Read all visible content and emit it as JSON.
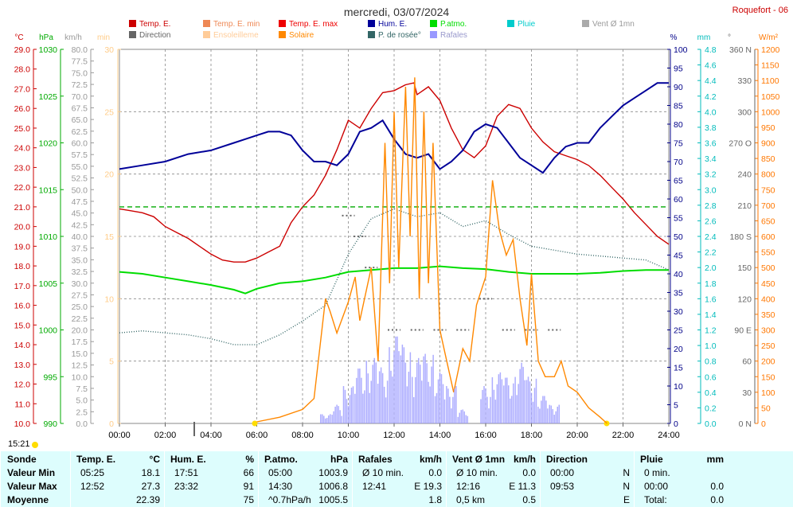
{
  "header": {
    "title": "mercredi, 03/07/2024",
    "station": "Roquefort - 06"
  },
  "legend": [
    {
      "label": "Temp. E.",
      "color": "#cc0000"
    },
    {
      "label": "Temp. E. min",
      "color": "#ee8855"
    },
    {
      "label": "Temp. E. max",
      "color": "#ee0000"
    },
    {
      "label": "Hum. E.",
      "color": "#000099"
    },
    {
      "label": "P.atmo.",
      "color": "#00dd00"
    },
    {
      "label": "Pluie",
      "color": "#00cccc"
    },
    {
      "label": "Vent Ø 1mn",
      "color": "#aaaaaa"
    },
    {
      "label": "Direction",
      "color": "#666666"
    },
    {
      "label": "Ensoleilleme",
      "color": "#ffcc99"
    },
    {
      "label": "Solaire",
      "color": "#ff8800"
    },
    {
      "label": "P. de rosée°",
      "color": "#336666"
    },
    {
      "label": "Rafales",
      "color": "#9999ff"
    }
  ],
  "axes": {
    "temp": {
      "unit": "°C",
      "min": 10,
      "max": 29,
      "step": 1,
      "color": "#cc0000"
    },
    "pressure": {
      "unit": "hPa",
      "min": 990,
      "max": 1030,
      "step": 5,
      "color": "#00aa00"
    },
    "wind": {
      "unit": "km/h",
      "min": 0,
      "max": 80,
      "step": 2.5,
      "color": "#999999"
    },
    "sun": {
      "unit": "min",
      "min": 0,
      "max": 30,
      "step": 5,
      "color": "#ffcc88"
    },
    "humidity": {
      "unit": "%",
      "min": 0,
      "max": 100,
      "step": 5,
      "color": "#000088"
    },
    "rain": {
      "unit": "mm",
      "min": 0,
      "max": 4.8,
      "step": 0.2,
      "color": "#00bbbb"
    },
    "direction": {
      "unit": "°",
      "ticks": [
        "0 N",
        "30",
        "60",
        "90 E",
        "120",
        "150",
        "180 S",
        "210",
        "240",
        "270 O",
        "300",
        "330",
        "360 N"
      ],
      "color": "#666666"
    },
    "solar": {
      "unit": "W/m²",
      "min": 0,
      "max": 1200,
      "step": 50,
      "color": "#ff7700"
    },
    "x_ticks": [
      "00:00",
      "02:00",
      "04:00",
      "06:00",
      "08:00",
      "10:00",
      "12:00",
      "14:00",
      "16:00",
      "18:00",
      "20:00",
      "22:00",
      "24:00"
    ]
  },
  "markers": {
    "sunrise": "03:16",
    "sunrise2": "05:55",
    "sunset": "21:16",
    "moonset": "4:19",
    "left_time": "15:21"
  },
  "chart_data": {
    "type": "line",
    "x_unit": "hours",
    "series": [
      {
        "name": "Temp. E.",
        "axis": "temp",
        "color": "#cc0000",
        "x": [
          0,
          0.5,
          1,
          1.5,
          2,
          2.5,
          3,
          3.5,
          4,
          4.5,
          5,
          5.5,
          6,
          6.5,
          7,
          7.5,
          8,
          8.5,
          9,
          9.5,
          10,
          10.5,
          11,
          11.5,
          12,
          12.5,
          12.87,
          13,
          13.5,
          14,
          14.5,
          15,
          15.5,
          16,
          16.5,
          17,
          17.5,
          18,
          18.5,
          19,
          19.5,
          20,
          20.5,
          21,
          21.5,
          22,
          22.5,
          23,
          23.5,
          24
        ],
        "y": [
          20.9,
          20.8,
          20.7,
          20.5,
          20.0,
          19.7,
          19.4,
          19.0,
          18.6,
          18.3,
          18.2,
          18.2,
          18.4,
          18.7,
          19.0,
          20.2,
          21.0,
          21.6,
          22.6,
          23.9,
          25.4,
          25.0,
          26.0,
          26.8,
          26.9,
          27.2,
          27.3,
          26.7,
          27.1,
          26.4,
          25.0,
          23.9,
          23.5,
          24.1,
          25.6,
          26.2,
          26.0,
          25.0,
          24.3,
          23.8,
          23.6,
          23.4,
          23.1,
          22.6,
          22.0,
          21.4,
          20.7,
          20.1,
          19.5,
          19.1
        ]
      },
      {
        "name": "Hum. E.",
        "axis": "humidity",
        "color": "#000099",
        "x": [
          0,
          1,
          2,
          3,
          4,
          5,
          5.5,
          6,
          6.5,
          7,
          7.5,
          8,
          8.5,
          9,
          9.5,
          10,
          10.5,
          11,
          11.5,
          12,
          12.5,
          13,
          13.5,
          14,
          14.5,
          15,
          15.5,
          16,
          16.5,
          17,
          17.5,
          18,
          18.5,
          19,
          19.5,
          20,
          20.5,
          21,
          21.5,
          22,
          22.5,
          23,
          23.5,
          24
        ],
        "y": [
          68,
          69,
          70,
          72,
          73,
          75,
          76,
          77,
          78,
          78,
          77,
          73,
          70,
          70,
          69,
          72,
          78,
          79,
          81,
          76,
          72,
          71,
          72,
          68,
          70,
          73,
          78,
          80,
          79,
          75,
          71,
          69,
          67,
          71,
          74,
          75,
          75,
          79,
          82,
          85,
          87,
          89,
          91,
          91
        ]
      },
      {
        "name": "P.atmo.",
        "axis": "pressure",
        "color": "#00dd00",
        "x": [
          0,
          1,
          2,
          3,
          4,
          5,
          5.5,
          6,
          7,
          8,
          9,
          10,
          11,
          12,
          13,
          14,
          15,
          16,
          17,
          18,
          19,
          20,
          21,
          22,
          23,
          24
        ],
        "y": [
          1006.2,
          1006.0,
          1005.6,
          1005.2,
          1004.8,
          1004.3,
          1003.9,
          1004.4,
          1005.0,
          1005.2,
          1005.6,
          1006.2,
          1006.4,
          1006.6,
          1006.6,
          1006.8,
          1006.6,
          1006.5,
          1006.2,
          1006.0,
          1006.0,
          1006.0,
          1006.1,
          1006.3,
          1006.4,
          1006.4
        ]
      },
      {
        "name": "Temp. E. max",
        "axis": "temp",
        "color": "#00aa00",
        "style": "dashed",
        "x": [
          0,
          24
        ],
        "y": [
          21.0,
          21.0
        ]
      },
      {
        "name": "P. de rosée°",
        "axis": "temp",
        "color": "#336666",
        "style": "dotted",
        "x": [
          0,
          1,
          2,
          3,
          4,
          5,
          6,
          7,
          8,
          9,
          10,
          11,
          12,
          13,
          14,
          15,
          16,
          17,
          18,
          19,
          20,
          21,
          22,
          23,
          24
        ],
        "y": [
          14.6,
          14.7,
          14.6,
          14.5,
          14.3,
          14.0,
          14.0,
          14.5,
          15.2,
          16.0,
          18.6,
          20.4,
          20.9,
          20.5,
          20.7,
          20.0,
          20.3,
          19.6,
          19.0,
          18.8,
          18.6,
          18.5,
          18.4,
          18.3,
          17.8
        ]
      },
      {
        "name": "Solaire",
        "axis": "solar",
        "color": "#ff8800",
        "x": [
          6,
          7,
          8,
          8.5,
          9,
          9.2,
          9.5,
          10,
          10.3,
          10.5,
          11,
          11.3,
          11.6,
          11.8,
          12,
          12.2,
          12.5,
          12.7,
          12.9,
          13.1,
          13.3,
          13.5,
          13.7,
          14,
          14.3,
          14.6,
          15,
          15.3,
          15.6,
          16,
          16.3,
          16.6,
          16.9,
          17.2,
          17.5,
          17.8,
          18,
          18.3,
          18.6,
          19,
          19.3,
          19.6,
          20,
          20.5,
          21,
          21.3
        ],
        "y": [
          5,
          20,
          45,
          80,
          400,
          360,
          290,
          390,
          470,
          330,
          500,
          200,
          900,
          450,
          1000,
          500,
          1080,
          600,
          1110,
          400,
          1000,
          450,
          900,
          300,
          200,
          100,
          240,
          200,
          380,
          470,
          780,
          620,
          540,
          590,
          400,
          250,
          480,
          200,
          150,
          150,
          200,
          120,
          100,
          50,
          20,
          0
        ]
      },
      {
        "name": "Rafales",
        "axis": "wind",
        "color": "#9999ff",
        "style": "bars",
        "x": [
          9,
          9.5,
          10,
          10.5,
          11,
          11.5,
          12,
          12.5,
          13,
          13.5,
          14,
          14.5,
          15,
          16,
          16.5,
          17,
          17.5,
          18,
          18.5,
          19
        ],
        "y": [
          2,
          4,
          8,
          12,
          14,
          12,
          19,
          17,
          14,
          15,
          11,
          8,
          3,
          8,
          11,
          10,
          13,
          10,
          6,
          4
        ]
      },
      {
        "name": "Direction",
        "axis": "direction",
        "color": "#666666",
        "style": "dots",
        "x": [
          10,
          10.5,
          11,
          12,
          13,
          14,
          15,
          16,
          17,
          18,
          19
        ],
        "y": [
          200,
          180,
          150,
          90,
          90,
          90,
          90,
          120,
          90,
          90,
          90
        ]
      }
    ]
  },
  "stats": {
    "rows": [
      "Sonde",
      "Valeur Min",
      "Valeur Max",
      "Moyenne"
    ],
    "columns": [
      {
        "title": "Temp. E.",
        "unit": "°C",
        "cells": [
          [
            "05:25",
            "18.1"
          ],
          [
            "12:52",
            "27.3"
          ],
          [
            "",
            "22.39"
          ]
        ]
      },
      {
        "title": "Hum. E.",
        "unit": "%",
        "cells": [
          [
            "17:51",
            "66"
          ],
          [
            "23:32",
            "91"
          ],
          [
            "",
            "75"
          ]
        ]
      },
      {
        "title": "P.atmo.",
        "unit": "hPa",
        "cells": [
          [
            "05:00",
            "1003.9"
          ],
          [
            "14:30",
            "1006.8"
          ],
          [
            "^0.7hPa/h",
            "1005.5"
          ]
        ]
      },
      {
        "title": "Rafales",
        "unit": "km/h",
        "cells": [
          [
            "Ø 10 min.",
            "0.0"
          ],
          [
            "12:41",
            "E 19.3"
          ],
          [
            "",
            "1.8"
          ]
        ]
      },
      {
        "title": "Vent Ø 1mn",
        "unit": "km/h",
        "cells": [
          [
            "Ø 10 min.",
            "0.0"
          ],
          [
            "12:16",
            "E 11.3"
          ],
          [
            "0,5 km",
            "0.5"
          ]
        ]
      },
      {
        "title": "Direction",
        "unit": "",
        "cells": [
          [
            "00:00",
            "N"
          ],
          [
            "09:53",
            "N"
          ],
          [
            "",
            "E"
          ]
        ]
      },
      {
        "title": "Pluie",
        "unit": "mm",
        "cells": [
          [
            "0 min.",
            ""
          ],
          [
            "00:00",
            "0.0"
          ],
          [
            "Total:",
            "0.0"
          ]
        ]
      }
    ]
  }
}
